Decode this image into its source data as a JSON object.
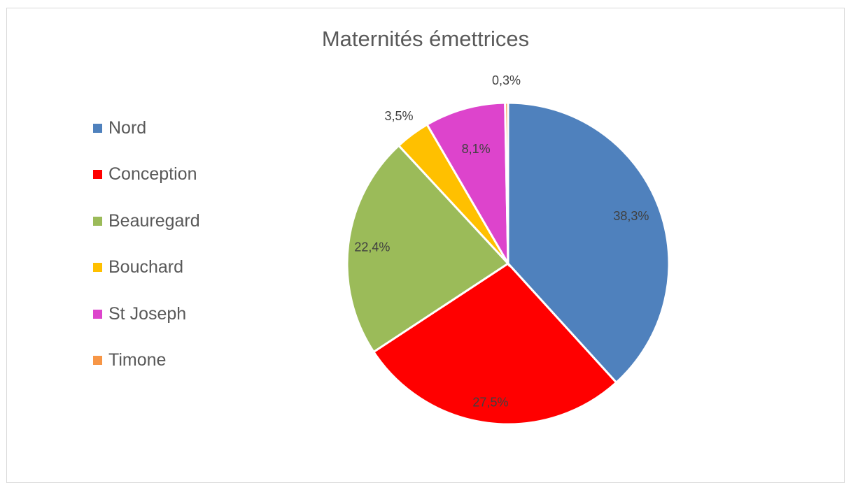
{
  "chart_data": {
    "type": "pie",
    "title": "Maternités émettrices",
    "legend_position": "left",
    "categories": [
      "Nord",
      "Conception",
      "Beauregard",
      "Bouchard",
      "St Joseph",
      "Timone"
    ],
    "values": [
      38.3,
      27.5,
      22.4,
      3.5,
      8.1,
      0.3
    ],
    "data_labels": [
      "38,3%",
      "27,5%",
      "22,4%",
      "3,5%",
      "8,1%",
      "0,3%"
    ],
    "colors": [
      "#4f81bd",
      "#ff0000",
      "#9bbb59",
      "#ffc000",
      "#dd44cc",
      "#f79646"
    ]
  }
}
